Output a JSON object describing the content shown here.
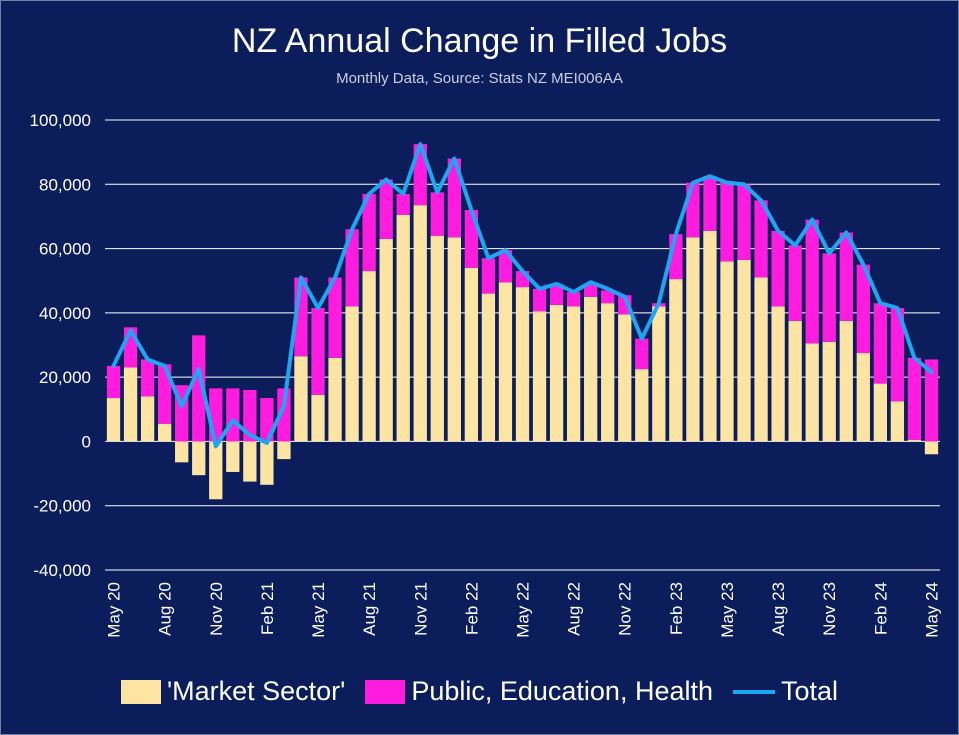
{
  "colors": {
    "background": "#0b1e5b",
    "market": "#fde4a3",
    "public": "#ff1cde",
    "total": "#1ea6f2",
    "grid": "#ffffff",
    "text": "#ffffff"
  },
  "chart_data": {
    "type": "bar",
    "stacked": true,
    "title": "NZ Annual Change in Filled Jobs",
    "subtitle": "Monthly Data, Source: Stats NZ MEI006AA",
    "xlabel": "",
    "ylabel": "",
    "ylim": [
      -40000,
      100000
    ],
    "yticks": [
      -40000,
      -20000,
      0,
      20000,
      40000,
      60000,
      80000,
      100000
    ],
    "ytick_labels": [
      "-40,000",
      "-20,000",
      "0",
      "20,000",
      "40,000",
      "60,000",
      "80,000",
      "100,000"
    ],
    "grid": true,
    "legend_position": "bottom",
    "categories": [
      "May 20",
      "Jun 20",
      "Jul 20",
      "Aug 20",
      "Sep 20",
      "Oct 20",
      "Nov 20",
      "Dec 20",
      "Jan 21",
      "Feb 21",
      "Mar 21",
      "Apr 21",
      "May 21",
      "Jun 21",
      "Jul 21",
      "Aug 21",
      "Sep 21",
      "Oct 21",
      "Nov 21",
      "Dec 21",
      "Jan 22",
      "Feb 22",
      "Mar 22",
      "Apr 22",
      "May 22",
      "Jun 22",
      "Jul 22",
      "Aug 22",
      "Sep 22",
      "Oct 22",
      "Nov 22",
      "Dec 22",
      "Jan 23",
      "Feb 23",
      "Mar 23",
      "Apr 23",
      "May 23",
      "Jun 23",
      "Jul 23",
      "Aug 23",
      "Sep 23",
      "Oct 23",
      "Nov 23",
      "Dec 23",
      "Jan 24",
      "Feb 24",
      "Mar 24",
      "Apr 24",
      "May 24"
    ],
    "tick_labels": [
      "May 20",
      "Aug 20",
      "Nov 20",
      "Feb 21",
      "May 21",
      "Aug 21",
      "Nov 21",
      "Feb 22",
      "May 22",
      "Aug 22",
      "Nov 22",
      "Feb 23",
      "May 23",
      "Aug 23",
      "Nov 23",
      "Feb 24",
      "May 24"
    ],
    "series": [
      {
        "name": "'Market Sector'",
        "kind": "bar",
        "values": [
          13500,
          23000,
          14000,
          5500,
          -6500,
          -10500,
          -18000,
          -9500,
          -12500,
          -13500,
          -5500,
          26500,
          14500,
          26000,
          42000,
          53000,
          63000,
          70500,
          73500,
          64000,
          63500,
          54000,
          46000,
          49500,
          48000,
          40500,
          42500,
          42000,
          45000,
          43000,
          39500,
          22500,
          42000,
          50500,
          63500,
          65500,
          56000,
          56500,
          51000,
          42000,
          37500,
          30500,
          31000,
          37500,
          27500,
          18000,
          12500,
          500,
          -4000
        ]
      },
      {
        "name": "Public, Education, Health",
        "kind": "bar",
        "values": [
          10000,
          12500,
          11500,
          18500,
          17500,
          33000,
          16500,
          16500,
          16000,
          13500,
          16500,
          24500,
          27000,
          25000,
          24000,
          24000,
          18500,
          6500,
          19000,
          13500,
          24500,
          18000,
          11000,
          10000,
          5000,
          7000,
          6500,
          4500,
          4000,
          4000,
          6000,
          9500,
          1000,
          14000,
          17000,
          17000,
          25000,
          23500,
          24000,
          23500,
          23500,
          38500,
          27500,
          27500,
          27500,
          25000,
          29000,
          25500,
          25500
        ]
      },
      {
        "name": "Total",
        "kind": "line",
        "values": [
          23500,
          34500,
          25500,
          23500,
          11000,
          22500,
          -1500,
          6500,
          2000,
          -500,
          11000,
          51000,
          41500,
          51000,
          66000,
          77000,
          81500,
          77000,
          92500,
          77500,
          88000,
          72000,
          57000,
          59500,
          53000,
          47500,
          49000,
          46500,
          49500,
          47500,
          45000,
          32000,
          43000,
          64500,
          80500,
          82500,
          80500,
          80000,
          75000,
          65500,
          61000,
          69000,
          58500,
          65000,
          55000,
          43000,
          41500,
          26000,
          21500
        ]
      }
    ]
  },
  "legend": [
    {
      "label": "'Market Sector'"
    },
    {
      "label": "Public, Education, Health"
    },
    {
      "label": "Total"
    }
  ]
}
